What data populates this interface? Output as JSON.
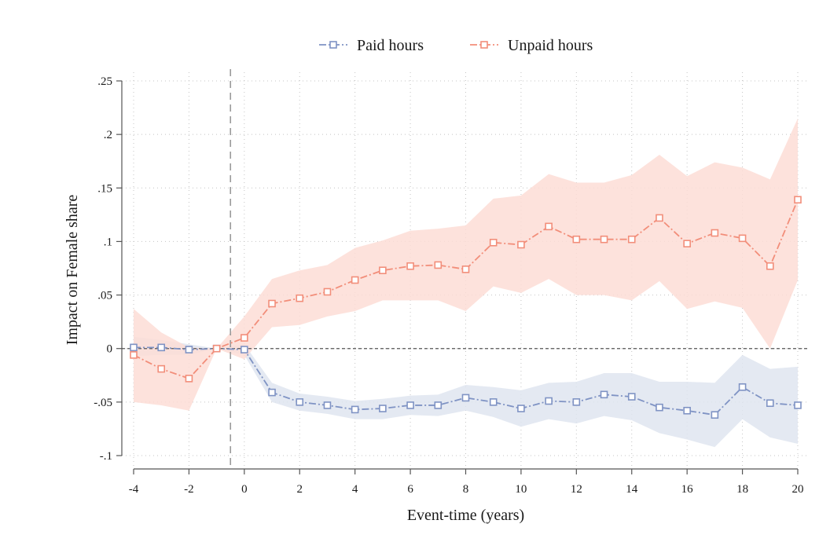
{
  "chart_data": {
    "type": "line",
    "xlabel": "Event-time (years)",
    "ylabel": "Impact on Female share",
    "xlim": [
      -4,
      20
    ],
    "ylim": [
      -0.1,
      0.25
    ],
    "x_ticks": [
      -4,
      -2,
      0,
      2,
      4,
      6,
      8,
      10,
      12,
      14,
      16,
      18,
      20
    ],
    "x_tick_labels": [
      "-4",
      "-2",
      "0",
      "2",
      "4",
      "6",
      "8",
      "10",
      "12",
      "14",
      "16",
      "18",
      "20"
    ],
    "y_ticks": [
      -0.1,
      -0.05,
      0,
      0.05,
      0.1,
      0.15,
      0.2,
      0.25
    ],
    "y_tick_labels": [
      "-.1",
      "-.05",
      "0",
      ".05",
      ".1",
      ".15",
      ".2",
      ".25"
    ],
    "grid": "dotted",
    "legend_position": "top",
    "reference_line_x": -0.5,
    "reference_line_y": 0,
    "x": [
      -4,
      -3,
      -2,
      -1,
      0,
      1,
      2,
      3,
      4,
      5,
      6,
      7,
      8,
      9,
      10,
      11,
      12,
      13,
      14,
      15,
      16,
      17,
      18,
      19,
      20
    ],
    "series": [
      {
        "name": "Paid hours",
        "color": "#7f93c4",
        "band_color": "#dfe5f0",
        "marker": "hollow-square",
        "values": [
          0.001,
          0.001,
          -0.001,
          0,
          -0.001,
          -0.041,
          -0.05,
          -0.053,
          -0.057,
          -0.056,
          -0.053,
          -0.053,
          -0.046,
          -0.05,
          -0.056,
          -0.049,
          -0.05,
          -0.043,
          -0.045,
          -0.055,
          -0.058,
          -0.062,
          -0.036,
          -0.051,
          -0.053
        ],
        "ci_lower": [
          -0.007,
          -0.006,
          -0.006,
          0,
          -0.006,
          -0.05,
          -0.058,
          -0.061,
          -0.066,
          -0.066,
          -0.062,
          -0.063,
          -0.058,
          -0.064,
          -0.073,
          -0.066,
          -0.07,
          -0.063,
          -0.067,
          -0.079,
          -0.085,
          -0.092,
          -0.066,
          -0.083,
          -0.089
        ],
        "ci_upper": [
          0.011,
          0.008,
          0.004,
          0,
          0.004,
          -0.032,
          -0.042,
          -0.045,
          -0.049,
          -0.047,
          -0.044,
          -0.043,
          -0.034,
          -0.036,
          -0.039,
          -0.032,
          -0.031,
          -0.023,
          -0.023,
          -0.031,
          -0.031,
          -0.032,
          -0.006,
          -0.019,
          -0.017
        ]
      },
      {
        "name": "Unpaid hours",
        "color": "#f28e7a",
        "band_color": "#fdddd6",
        "marker": "hollow-square",
        "values": [
          -0.006,
          -0.019,
          -0.028,
          0,
          0.01,
          0.042,
          0.047,
          0.053,
          0.064,
          0.073,
          0.077,
          0.078,
          0.074,
          0.099,
          0.097,
          0.114,
          0.102,
          0.102,
          0.102,
          0.122,
          0.098,
          0.108,
          0.103,
          0.077,
          0.139
        ],
        "ci_lower": [
          -0.05,
          -0.053,
          -0.058,
          0,
          -0.01,
          0.02,
          0.022,
          0.03,
          0.035,
          0.045,
          0.045,
          0.045,
          0.035,
          0.058,
          0.052,
          0.065,
          0.05,
          0.05,
          0.045,
          0.063,
          0.037,
          0.044,
          0.038,
          0.0,
          0.064
        ],
        "ci_upper": [
          0.037,
          0.015,
          0.001,
          0,
          0.03,
          0.065,
          0.073,
          0.078,
          0.094,
          0.101,
          0.11,
          0.112,
          0.115,
          0.14,
          0.143,
          0.163,
          0.155,
          0.155,
          0.162,
          0.181,
          0.161,
          0.174,
          0.169,
          0.158,
          0.215
        ]
      }
    ]
  }
}
